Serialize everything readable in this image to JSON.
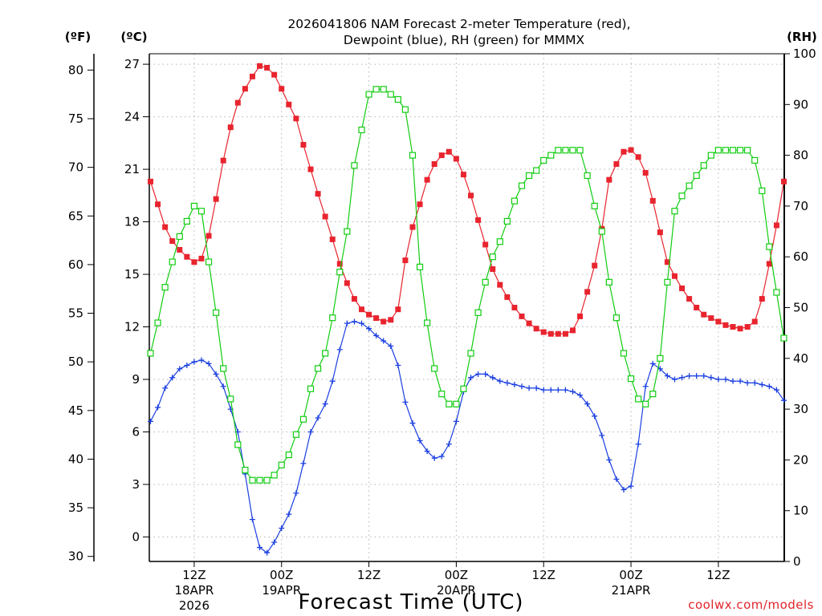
{
  "title_line1": "2026041806 NAM Forecast 2-meter Temperature (red),",
  "title_line2": "Dewpoint (blue), RH (green) for MMMX",
  "unit_f": "(ºF)",
  "unit_c": "(ºC)",
  "unit_rh": "(RH)",
  "credit": "coolwx.com/models",
  "colors": {
    "temperature": "#e8242e",
    "dewpoint": "#1a3fe0",
    "rh": "#12cc12"
  },
  "chart_data": {
    "type": "line",
    "xlabel": "Forecast Time (UTC)",
    "x_start": "2026-04-18 06Z",
    "x_end": "2026-04-21 21Z",
    "x_step": "1h",
    "x_ticks": [
      {
        "line1": "12Z",
        "line2": "18APR",
        "line3": "2026",
        "date": "2026-04-18 12Z"
      },
      {
        "line1": "00Z",
        "line2": "19APR",
        "line3": "",
        "date": "2026-04-19 00Z"
      },
      {
        "line1": "12Z",
        "line2": "",
        "line3": "",
        "date": "2026-04-19 12Z"
      },
      {
        "line1": "00Z",
        "line2": "20APR",
        "line3": "",
        "date": "2026-04-20 00Z"
      },
      {
        "line1": "12Z",
        "line2": "",
        "line3": "",
        "date": "2026-04-20 12Z"
      },
      {
        "line1": "00Z",
        "line2": "21APR",
        "line3": "",
        "date": "2026-04-21 00Z"
      },
      {
        "line1": "12Z",
        "line2": "",
        "line3": "",
        "date": "2026-04-21 12Z"
      }
    ],
    "y_celsius_ticks": [
      "0",
      "3",
      "6",
      "9",
      "12",
      "15",
      "18",
      "21",
      "24",
      "27"
    ],
    "y_fahrenheit_ticks": [
      "30",
      "35",
      "40",
      "45",
      "50",
      "55",
      "60",
      "65",
      "70",
      "75",
      "80"
    ],
    "y_rh_ticks": [
      "0",
      "10",
      "20",
      "30",
      "40",
      "50",
      "60",
      "70",
      "80",
      "90",
      "100"
    ],
    "ylim_celsius": [
      -1.4,
      27.6
    ],
    "ylim_rh": [
      0,
      100
    ],
    "grid": true,
    "series": [
      {
        "name": "Temperature",
        "unit": "C",
        "marker": "square-filled",
        "values": [
          20.3,
          19.0,
          17.7,
          16.9,
          16.4,
          16.0,
          15.7,
          15.9,
          17.2,
          19.3,
          21.5,
          23.4,
          24.8,
          25.6,
          26.3,
          26.9,
          26.8,
          26.4,
          25.6,
          24.7,
          23.9,
          22.4,
          21.0,
          19.6,
          18.3,
          17.0,
          15.6,
          14.5,
          13.6,
          13.0,
          12.7,
          12.5,
          12.3,
          12.4,
          13.0,
          15.8,
          17.7,
          19.0,
          20.4,
          21.3,
          21.8,
          22.0,
          21.6,
          20.7,
          19.5,
          18.1,
          16.7,
          15.3,
          14.4,
          13.7,
          13.1,
          12.6,
          12.2,
          11.9,
          11.7,
          11.6,
          11.6,
          11.6,
          11.8,
          12.6,
          14.0,
          15.5,
          17.6,
          20.4,
          21.3,
          22.0,
          22.1,
          21.7,
          20.8,
          19.2,
          17.4,
          15.7,
          14.9,
          14.2,
          13.6,
          13.1,
          12.7,
          12.5,
          12.3,
          12.1,
          12.0,
          11.9,
          12.0,
          12.3,
          13.6,
          15.6,
          17.8,
          20.3
        ]
      },
      {
        "name": "Dewpoint",
        "unit": "C",
        "marker": "plus",
        "values": [
          6.6,
          7.4,
          8.5,
          9.1,
          9.6,
          9.8,
          10.0,
          10.1,
          9.9,
          9.3,
          8.6,
          7.3,
          6.0,
          3.6,
          1.0,
          -0.6,
          -0.9,
          -0.3,
          0.5,
          1.3,
          2.5,
          4.2,
          6.0,
          6.8,
          7.6,
          8.9,
          10.7,
          12.2,
          12.3,
          12.2,
          11.9,
          11.5,
          11.2,
          10.9,
          9.8,
          7.7,
          6.5,
          5.5,
          4.9,
          4.5,
          4.6,
          5.3,
          6.6,
          8.3,
          9.1,
          9.3,
          9.3,
          9.1,
          8.9,
          8.8,
          8.7,
          8.6,
          8.5,
          8.5,
          8.4,
          8.4,
          8.4,
          8.4,
          8.3,
          8.1,
          7.6,
          6.9,
          5.8,
          4.4,
          3.3,
          2.7,
          2.9,
          5.3,
          8.6,
          9.9,
          9.6,
          9.2,
          9.0,
          9.1,
          9.2,
          9.2,
          9.2,
          9.1,
          9.0,
          9.0,
          8.9,
          8.9,
          8.8,
          8.8,
          8.7,
          8.6,
          8.4,
          7.8
        ]
      },
      {
        "name": "RH",
        "unit": "%",
        "marker": "square-open",
        "values": [
          41,
          47,
          54,
          59,
          64,
          67,
          70,
          69,
          59,
          49,
          38,
          32,
          23,
          18,
          16,
          16,
          16,
          17,
          19,
          21,
          25,
          28,
          34,
          38,
          41,
          48,
          57,
          65,
          78,
          85,
          92,
          93,
          93,
          92,
          91,
          89,
          80,
          58,
          47,
          38,
          33,
          31,
          31,
          34,
          41,
          49,
          55,
          60,
          63,
          67,
          71,
          74,
          76,
          77,
          79,
          80,
          81,
          81,
          81,
          81,
          76,
          70,
          65,
          55,
          48,
          41,
          36,
          32,
          31,
          33,
          40,
          55,
          69,
          72,
          74,
          76,
          78,
          80,
          81,
          81,
          81,
          81,
          81,
          79,
          73,
          62,
          53,
          44
        ]
      }
    ]
  }
}
